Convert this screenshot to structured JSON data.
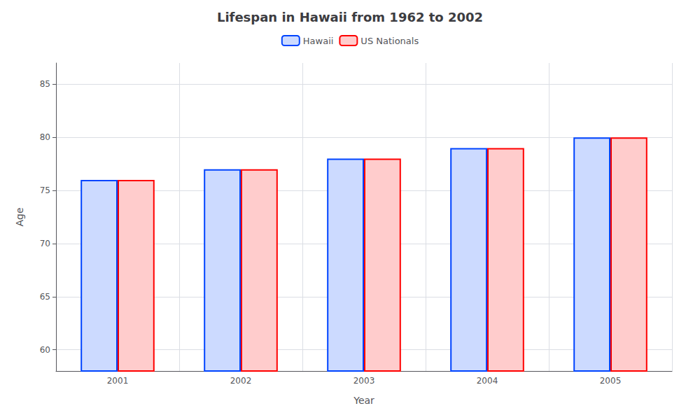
{
  "chart_data": {
    "type": "bar",
    "title": "Lifespan in Hawaii from 1962 to 2002",
    "xlabel": "Year",
    "ylabel": "Age",
    "categories": [
      "2001",
      "2002",
      "2003",
      "2004",
      "2005"
    ],
    "series": [
      {
        "name": "Hawaii",
        "color": "#0044ff",
        "values": [
          76,
          77,
          78,
          79,
          80
        ]
      },
      {
        "name": "US Nationals",
        "color": "#ff0000",
        "values": [
          76,
          77,
          78,
          79,
          80
        ]
      }
    ],
    "ylim": [
      58,
      87
    ],
    "yticks": [
      60,
      65,
      70,
      75,
      80,
      85
    ],
    "grid": true,
    "legend": "top"
  }
}
